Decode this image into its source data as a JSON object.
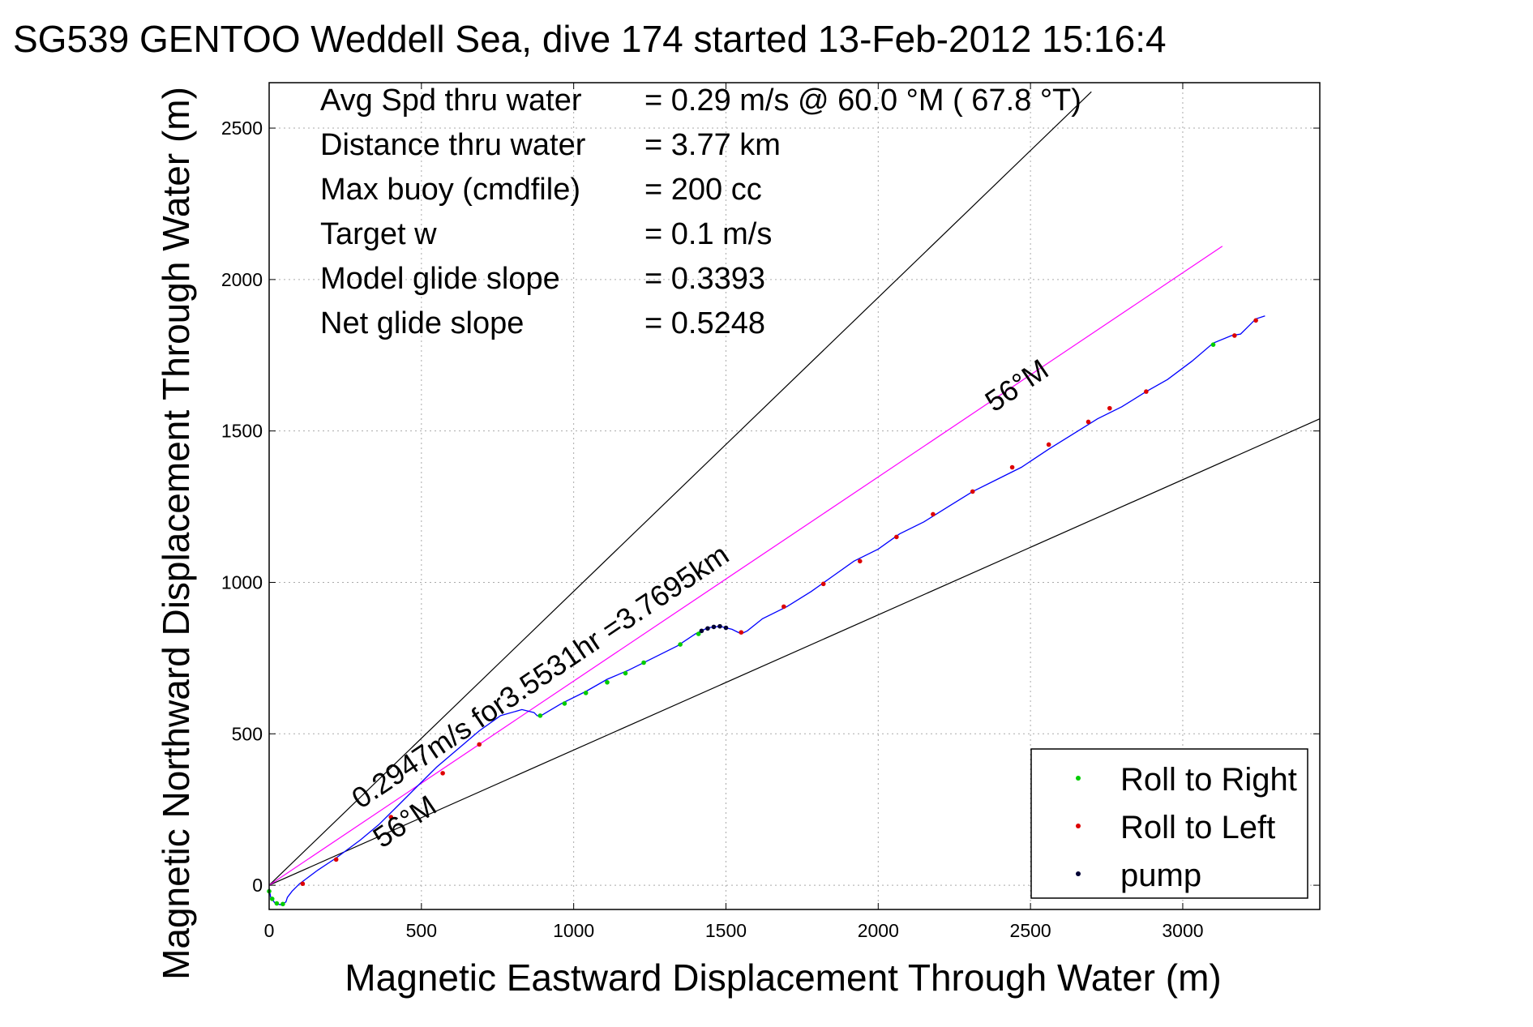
{
  "title": "SG539 GENTOO Weddell Sea, dive 174 started 13-Feb-2012 15:16:4",
  "chart_data": {
    "type": "line",
    "xlabel": "Magnetic Eastward Displacement Through Water (m)",
    "ylabel": "Magnetic Northward Displacement Through Water (m)",
    "xlim": [
      0,
      3450
    ],
    "ylim": [
      -80,
      2650
    ],
    "grid": true,
    "xticks": [
      0,
      500,
      1000,
      1500,
      2000,
      2500,
      3000
    ],
    "xtick_labels": [
      "0",
      "500",
      "1000",
      "1500",
      "2000",
      "2500",
      "3000"
    ],
    "yticks": [
      0,
      500,
      1000,
      1500,
      2000,
      2500
    ],
    "ytick_labels": [
      "0",
      "500",
      "1000",
      "1500",
      "2000",
      "2500"
    ],
    "info_lines": [
      {
        "label": "Avg Spd thru water",
        "value": "=  0.29 m/s @  60.0 °M ( 67.8 °T)"
      },
      {
        "label": "Distance thru water",
        "value": "=  3.77 km"
      },
      {
        "label": "Max buoy (cmdfile)",
        "value": "= 200 cc"
      },
      {
        "label": "Target w",
        "value": "= 0.1 m/s"
      },
      {
        "label": "Model glide slope",
        "value": "= 0.3393"
      },
      {
        "label": "Net glide slope",
        "value": "= 0.5248"
      }
    ],
    "annotations": [
      {
        "text": "0.2947m/s for3.5531hr =3.7695km",
        "x": 300,
        "y": 250,
        "angle_deg": 34
      },
      {
        "text": "56°M",
        "x": 370,
        "y": 120,
        "angle_deg": 34
      },
      {
        "text": "56°M",
        "x": 2380,
        "y": 1560,
        "angle_deg": 34
      }
    ],
    "reference_lines": [
      {
        "name": "upper-bound",
        "x": [
          0,
          2700
        ],
        "y": [
          0,
          2620
        ],
        "color": "#000000"
      },
      {
        "name": "lower-bound",
        "x": [
          0,
          3450
        ],
        "y": [
          0,
          1540
        ],
        "color": "#000000"
      },
      {
        "name": "heading-line",
        "x": [
          0,
          3130
        ],
        "y": [
          0,
          2110
        ],
        "color": "#ff00ff"
      }
    ],
    "track": {
      "color": "#0000ff",
      "x": [
        0,
        5,
        20,
        40,
        55,
        60,
        75,
        100,
        120,
        160,
        220,
        300,
        360,
        420,
        480,
        550,
        620,
        690,
        760,
        830,
        870,
        880,
        890,
        910,
        960,
        1040,
        1110,
        1180,
        1260,
        1340,
        1400,
        1440,
        1480,
        1520,
        1550,
        1570,
        1620,
        1700,
        1780,
        1850,
        1920,
        2000,
        2070,
        2150,
        2230,
        2310,
        2390,
        2470,
        2560,
        2640,
        2720,
        2800,
        2880,
        2950,
        3030,
        3100,
        3160,
        3190,
        3220,
        3240,
        3270
      ],
      "y": [
        -10,
        -40,
        -60,
        -65,
        -55,
        -40,
        -20,
        5,
        20,
        50,
        90,
        150,
        200,
        260,
        320,
        390,
        450,
        510,
        560,
        580,
        570,
        560,
        558,
        570,
        600,
        640,
        680,
        710,
        750,
        790,
        830,
        850,
        855,
        845,
        830,
        840,
        880,
        920,
        970,
        1020,
        1070,
        1110,
        1160,
        1200,
        1250,
        1300,
        1340,
        1380,
        1440,
        1490,
        1540,
        1580,
        1630,
        1670,
        1730,
        1790,
        1815,
        1820,
        1850,
        1870,
        1880
      ]
    },
    "series": [
      {
        "name": "Roll to Right",
        "color": "#00cc00",
        "x": [
          0,
          10,
          25,
          45,
          890,
          970,
          1040,
          1110,
          1170,
          1230,
          1350,
          1410,
          3100
        ],
        "y": [
          -20,
          -45,
          -60,
          -62,
          560,
          600,
          635,
          670,
          700,
          735,
          795,
          830,
          1785
        ]
      },
      {
        "name": "Roll to Left",
        "color": "#dd0000",
        "x": [
          110,
          220,
          400,
          570,
          690,
          1550,
          1690,
          1820,
          1940,
          2060,
          2180,
          2310,
          2440,
          2560,
          2690,
          2760,
          2880,
          3170,
          3240
        ],
        "y": [
          5,
          85,
          225,
          370,
          465,
          835,
          920,
          995,
          1070,
          1150,
          1225,
          1300,
          1380,
          1455,
          1530,
          1575,
          1630,
          1815,
          1865
        ]
      },
      {
        "name": "pump",
        "color": "#000033",
        "x": [
          1420,
          1440,
          1460,
          1480,
          1500
        ],
        "y": [
          840,
          848,
          853,
          855,
          850
        ]
      }
    ],
    "legend_position": "bottom-right"
  }
}
